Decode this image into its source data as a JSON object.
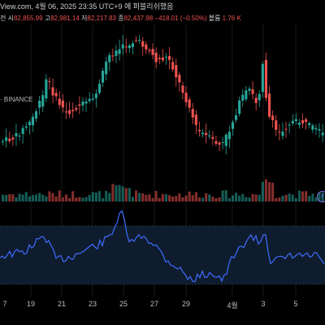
{
  "header": {
    "title_text": "View.com, 4월 06, 2025 23:35 UTC+9 에 퍼블리쉬했음"
  },
  "ohlc": {
    "prefix": "전",
    "open_label": "시",
    "open_value": "82,855.99",
    "high_label": "고",
    "high_value": "82,981.14",
    "low_label": "저",
    "low_value": "82,217.83",
    "close_label": "종",
    "close_value": "82,437.98",
    "change": "−418.01 (−0.50%)",
    "volume_label": "볼륨",
    "volume_value": "1.76 K"
  },
  "source_label": "· BINANCE",
  "colors": {
    "up": "#26a69a",
    "down": "#ef5350",
    "rsi_line": "#3d6cff",
    "rsi_band": "#0f1c2d",
    "grid": "#1a1a1a",
    "text": "#cfcfcf"
  },
  "xaxis_labels": [
    "7",
    "19",
    "21",
    "23",
    "25",
    "27",
    "29",
    "4월",
    "3",
    "5"
  ],
  "icons": {
    "indicator_settings": "lightning-icon"
  }
}
